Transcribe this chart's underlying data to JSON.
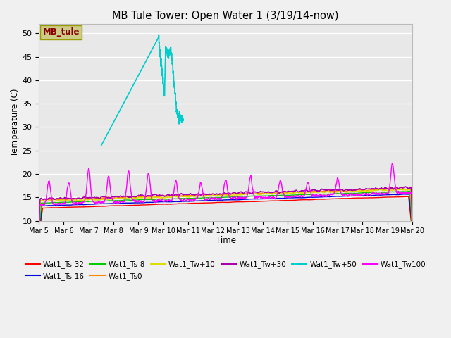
{
  "title": "MB Tule Tower: Open Water 1 (3/19/14-now)",
  "xlabel": "Time",
  "ylabel": "Temperature (C)",
  "ylim": [
    10,
    52
  ],
  "yticks": [
    10,
    15,
    20,
    25,
    30,
    35,
    40,
    45,
    50
  ],
  "xlim_days": 15,
  "xtick_positions": [
    0,
    1,
    2,
    3,
    4,
    5,
    6,
    7,
    8,
    9,
    10,
    11,
    12,
    13,
    14,
    15
  ],
  "xtick_labels": [
    "Mar 5",
    "Mar 6",
    "Mar 7",
    "Mar 8",
    "Mar 9",
    "Mar 10",
    "Mar 11",
    "Mar 12",
    "Mar 13",
    "Mar 14",
    "Mar 15",
    "Mar 16",
    "Mar 17",
    "Mar 18",
    "Mar 19",
    "Mar 20"
  ],
  "series_colors": {
    "Wat1_Ts-32": "#ff0000",
    "Wat1_Ts-16": "#0000dd",
    "Wat1_Ts-8": "#00cc00",
    "Wat1_Ts0": "#ff8800",
    "Wat1_Tw+10": "#dddd00",
    "Wat1_Tw+30": "#aa00aa",
    "Wat1_Tw+50": "#00cccc",
    "Wat1_Tw100": "#ff00ff"
  },
  "bg_color": "#e8e8e8",
  "grid_color": "#ffffff",
  "fig_bg": "#f0f0f0",
  "legend_box_color": "#cccc88",
  "legend_text_color": "#880000",
  "legend_box_label": "MB_tule"
}
